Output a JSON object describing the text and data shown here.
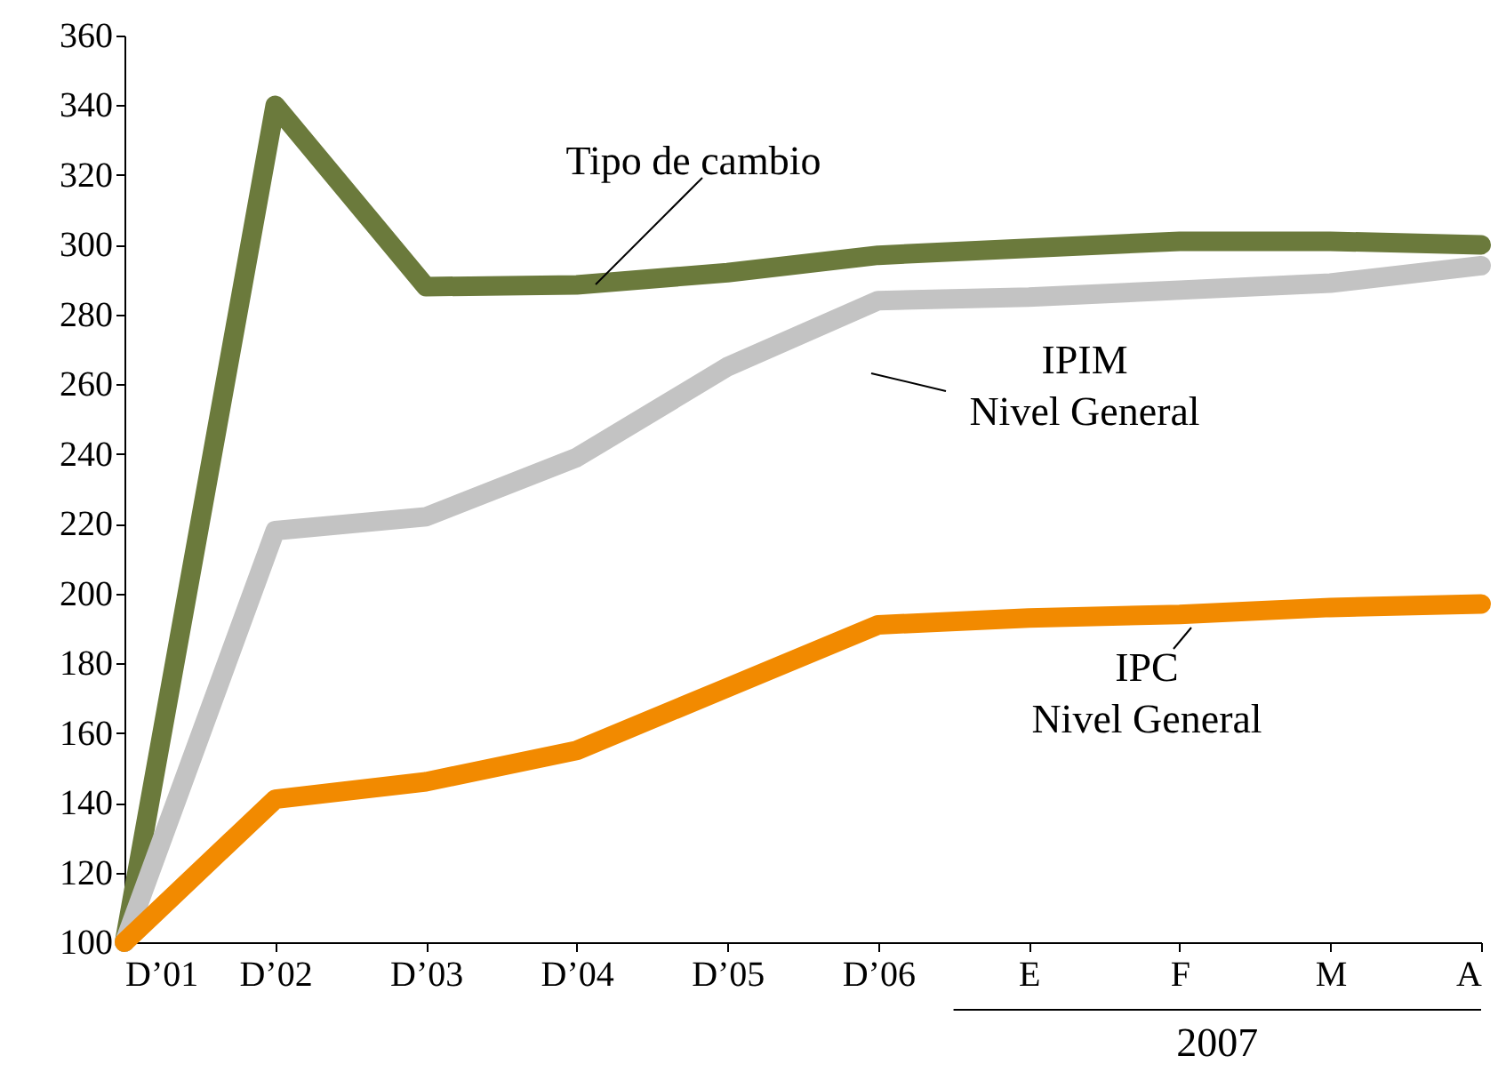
{
  "chart_data": {
    "type": "line",
    "categories": [
      "D’01",
      "D’02",
      "D’03",
      "D’04",
      "D’05",
      "D’06",
      "E",
      "F",
      "M",
      "A"
    ],
    "series": [
      {
        "name": "Tipo de cambio",
        "color": "#6b7a3c",
        "values": [
          100,
          340,
          288,
          288.5,
          292,
          297,
          299,
          301,
          301,
          300
        ]
      },
      {
        "name": "IPIM\nNivel General",
        "color": "#c3c3c3",
        "values": [
          100,
          218,
          222,
          239,
          265,
          284,
          285,
          287,
          289,
          294
        ]
      },
      {
        "name": "IPC\nNivel General",
        "color": "#f28a00",
        "values": [
          100,
          141,
          146,
          155,
          173,
          191,
          193,
          194,
          196,
          197
        ]
      }
    ],
    "ylim": [
      100,
      360
    ],
    "yticks": [
      100,
      120,
      140,
      160,
      180,
      200,
      220,
      240,
      260,
      280,
      300,
      320,
      340,
      360
    ],
    "grid": false,
    "legend": false,
    "marker": "none",
    "line_style": "solid",
    "annotations": [
      "2007"
    ]
  }
}
